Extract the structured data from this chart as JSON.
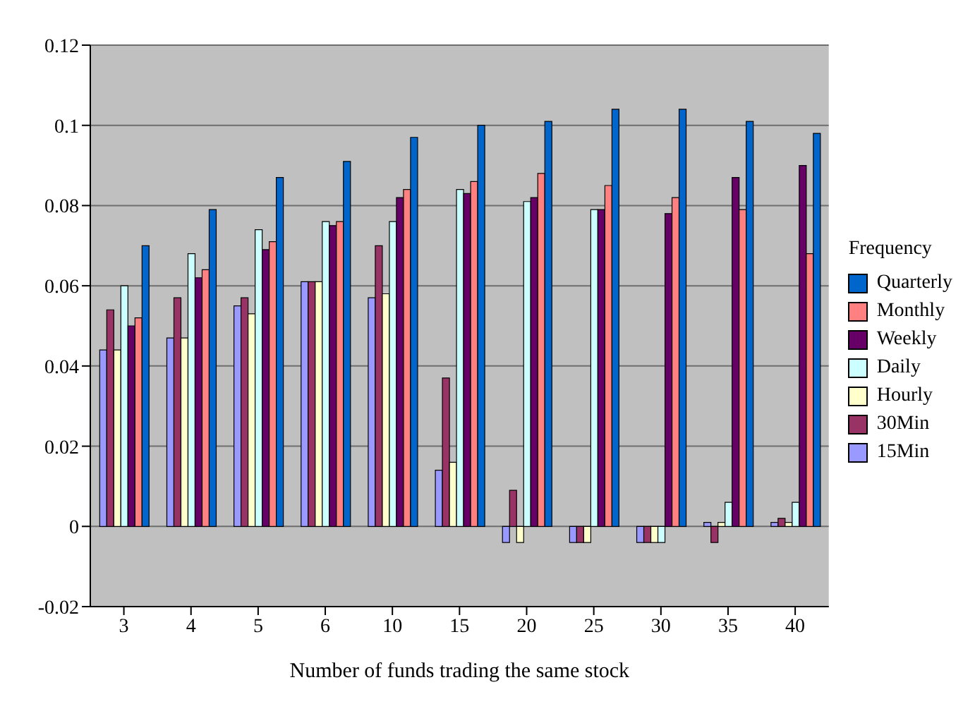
{
  "chart_data": {
    "type": "bar",
    "xlabel": "Number of funds trading the same stock",
    "legend_title": "Frequency",
    "categories": [
      "3",
      "4",
      "5",
      "6",
      "10",
      "15",
      "20",
      "25",
      "30",
      "35",
      "40"
    ],
    "series": [
      {
        "name": "15Min",
        "color": "#9999ff",
        "values": [
          0.044,
          0.047,
          0.055,
          0.061,
          0.057,
          0.014,
          -0.004,
          -0.004,
          -0.004,
          0.001,
          0.001
        ]
      },
      {
        "name": "30Min",
        "color": "#993366",
        "values": [
          0.054,
          0.057,
          0.057,
          0.061,
          0.07,
          0.037,
          0.009,
          -0.004,
          -0.004,
          -0.004,
          0.002
        ]
      },
      {
        "name": "Hourly",
        "color": "#ffffcc",
        "values": [
          0.044,
          0.047,
          0.053,
          0.061,
          0.058,
          0.016,
          -0.004,
          -0.004,
          -0.004,
          0.001,
          0.001
        ]
      },
      {
        "name": "Daily",
        "color": "#ccffff",
        "values": [
          0.06,
          0.068,
          0.074,
          0.076,
          0.076,
          0.084,
          0.081,
          0.079,
          -0.004,
          0.006,
          0.006
        ]
      },
      {
        "name": "Weekly",
        "color": "#660066",
        "values": [
          0.05,
          0.062,
          0.069,
          0.075,
          0.082,
          0.083,
          0.082,
          0.079,
          0.078,
          0.087,
          0.09
        ]
      },
      {
        "name": "Monthly",
        "color": "#ff8080",
        "values": [
          0.052,
          0.064,
          0.071,
          0.076,
          0.084,
          0.086,
          0.088,
          0.085,
          0.082,
          0.079,
          0.068
        ]
      },
      {
        "name": "Quarterly",
        "color": "#0066cc",
        "values": [
          0.07,
          0.079,
          0.087,
          0.091,
          0.097,
          0.1,
          0.101,
          0.104,
          0.104,
          0.101,
          0.098
        ]
      }
    ],
    "ylim": [
      -0.02,
      0.12
    ],
    "yticks": [
      -0.02,
      0,
      0.02,
      0.04,
      0.06,
      0.08,
      0.1,
      0.12
    ],
    "grid": "y",
    "legend": "right"
  }
}
